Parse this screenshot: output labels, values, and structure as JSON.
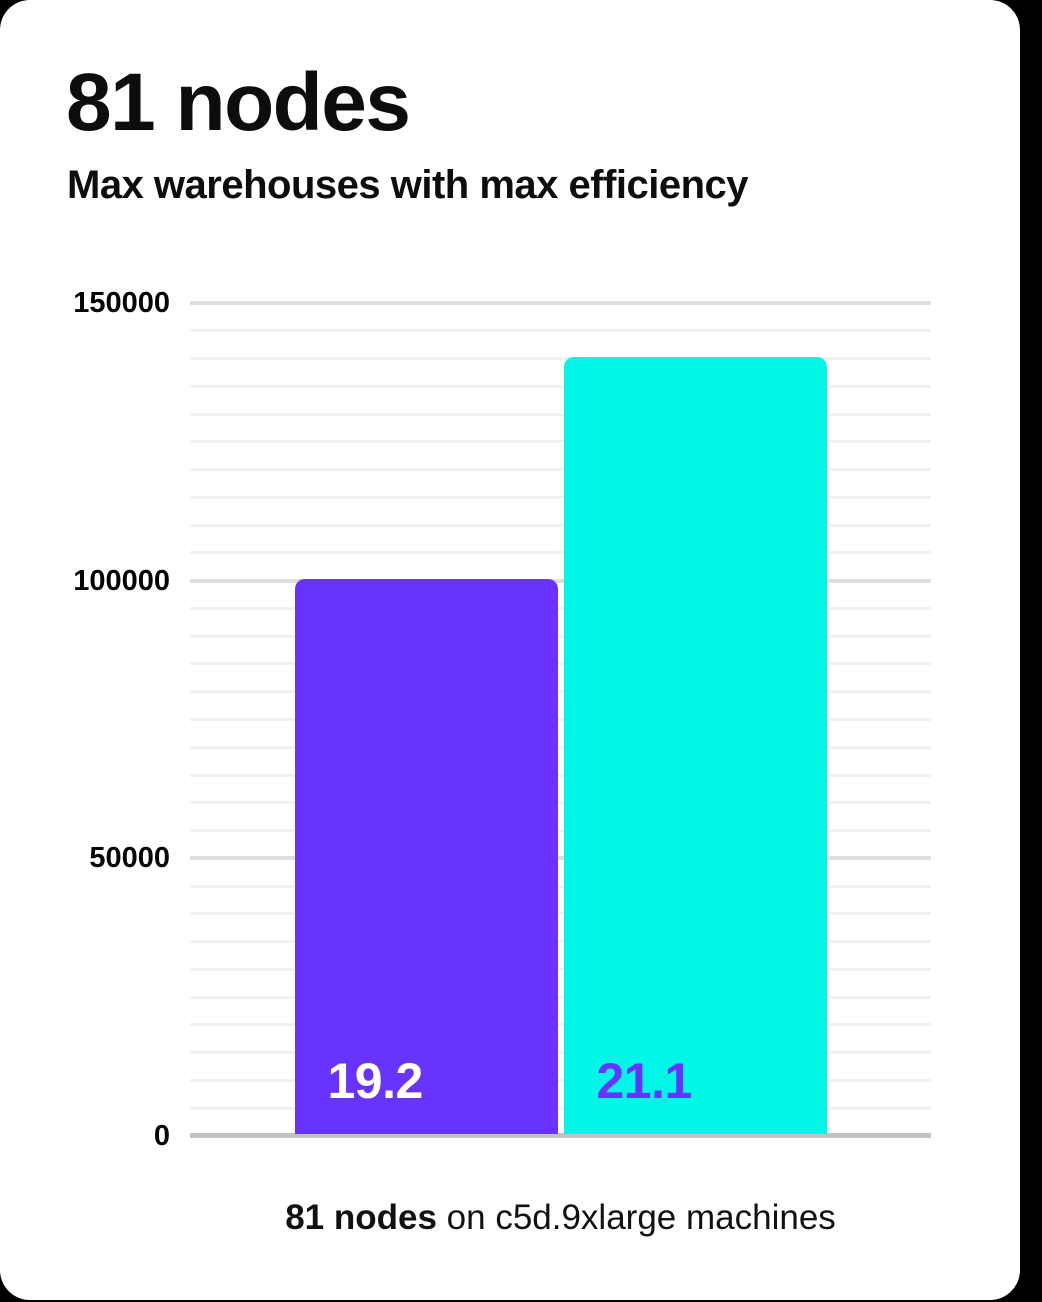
{
  "page": {
    "background_color": "#000000",
    "card_color": "#ffffff"
  },
  "header": {
    "title": "81 nodes",
    "subtitle": "Max warehouses with max efficiency"
  },
  "caption": {
    "bold": "81 nodes",
    "rest": " on c5d.9xlarge machines"
  },
  "colors": {
    "bar_primary": "#6933ff",
    "bar_secondary": "#00f7e8",
    "label_on_primary": "#ffffff",
    "label_on_secondary": "#6933ff",
    "grid_minor": "#f1f1f1",
    "grid_major": "#dedede",
    "axis_line": "#c3c3c3",
    "text": "#0d0d0d"
  },
  "chart_data": {
    "type": "bar",
    "title": "81 nodes",
    "subtitle": "Max warehouses with max efficiency",
    "caption": "81 nodes on c5d.9xlarge machines",
    "categories": [
      "19.2",
      "21.1"
    ],
    "values": [
      100000,
      140000
    ],
    "bar_colors": [
      "#6933ff",
      "#00f7e8"
    ],
    "bar_label_colors": [
      "#ffffff",
      "#6933ff"
    ],
    "bar_value_labels_inside_bottom": true,
    "xlabel": "",
    "ylabel": "",
    "ylim": [
      0,
      150000
    ],
    "yticks": [
      0,
      50000,
      100000,
      150000
    ],
    "grid": {
      "visible": true,
      "minor_step": 5000,
      "major_step": 50000
    },
    "legend": false
  }
}
